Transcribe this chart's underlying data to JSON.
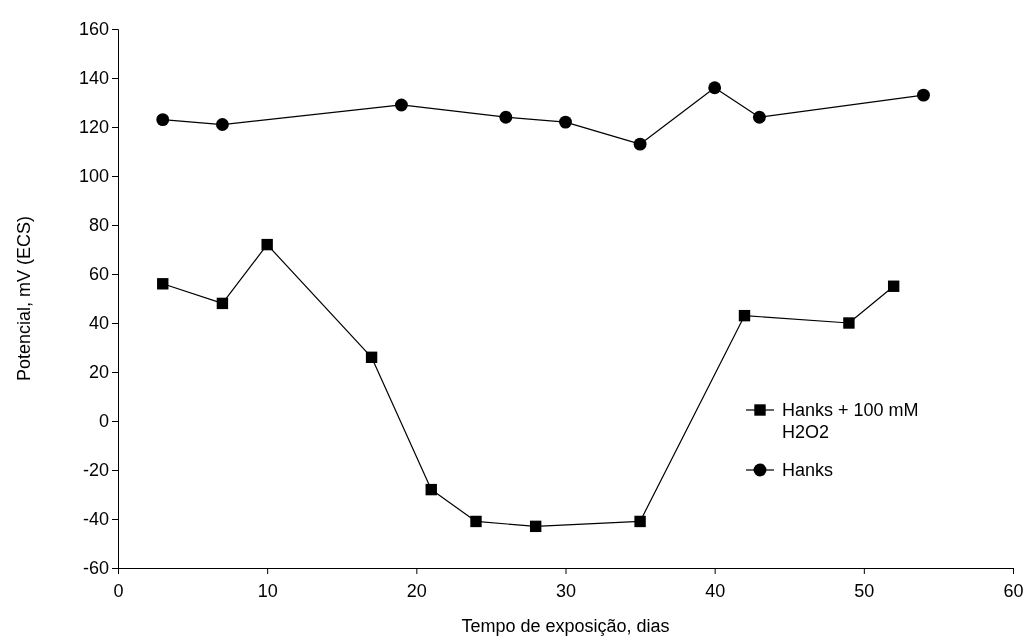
{
  "chart_data": {
    "type": "line",
    "xlabel": "Tempo de exposição, dias",
    "ylabel": "Potencial, mV (ECS)",
    "xlim": [
      0,
      60
    ],
    "xticks": [
      0,
      10,
      20,
      30,
      40,
      50,
      60
    ],
    "ylim": [
      -60,
      160
    ],
    "yticks": [
      -60,
      -40,
      -20,
      0,
      20,
      40,
      60,
      80,
      100,
      120,
      140,
      160
    ],
    "grid": false,
    "legend": "right",
    "line_style": "solid",
    "series": [
      {
        "name": "Hanks + 100 mM H2O2",
        "color": "#000000",
        "marker": "square",
        "x": [
          3,
          7,
          10,
          17,
          21,
          24,
          28,
          35,
          42,
          49,
          52
        ],
        "values": [
          56,
          48,
          72,
          26,
          -28,
          -41,
          -43,
          -41,
          43,
          40,
          55
        ]
      },
      {
        "name": "Hanks",
        "color": "#000000",
        "marker": "circle",
        "x": [
          3,
          7,
          19,
          26,
          30,
          35,
          40,
          43,
          54
        ],
        "values": [
          123,
          121,
          129,
          124,
          122,
          113,
          136,
          124,
          133
        ]
      }
    ]
  }
}
